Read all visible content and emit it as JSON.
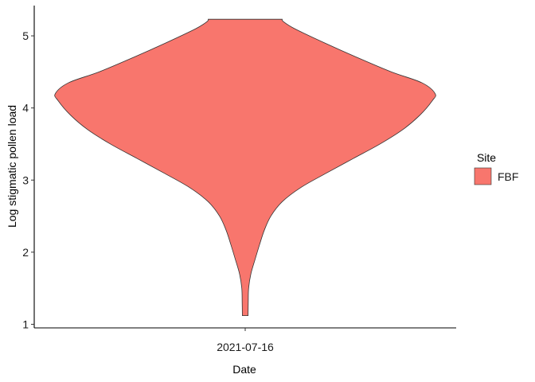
{
  "chart_data": {
    "type": "violin",
    "xlabel": "Date",
    "ylabel": "Log stigmatic pollen load",
    "categories": [
      "2021-07-16"
    ],
    "yticks": [
      1,
      2,
      3,
      4,
      5
    ],
    "ylim": [
      0.95,
      5.42
    ],
    "grid": false,
    "legend": {
      "title": "Site",
      "position": "right",
      "entries": [
        {
          "label": "FBF",
          "color": "#F8766D"
        }
      ]
    },
    "series": [
      {
        "name": "FBF",
        "category": "2021-07-16",
        "color": "#F8766D",
        "density_profile": [
          [
            1.12,
            0.015
          ],
          [
            1.3,
            0.016
          ],
          [
            1.5,
            0.018
          ],
          [
            1.7,
            0.03
          ],
          [
            1.9,
            0.052
          ],
          [
            2.1,
            0.075
          ],
          [
            2.3,
            0.1
          ],
          [
            2.5,
            0.135
          ],
          [
            2.7,
            0.195
          ],
          [
            2.9,
            0.295
          ],
          [
            3.1,
            0.43
          ],
          [
            3.3,
            0.57
          ],
          [
            3.5,
            0.71
          ],
          [
            3.7,
            0.83
          ],
          [
            3.9,
            0.92
          ],
          [
            4.1,
            0.985
          ],
          [
            4.2,
            1.0
          ],
          [
            4.35,
            0.93
          ],
          [
            4.5,
            0.77
          ],
          [
            4.7,
            0.59
          ],
          [
            4.9,
            0.42
          ],
          [
            5.1,
            0.26
          ],
          [
            5.2,
            0.2
          ],
          [
            5.23,
            0.195
          ]
        ]
      }
    ]
  }
}
